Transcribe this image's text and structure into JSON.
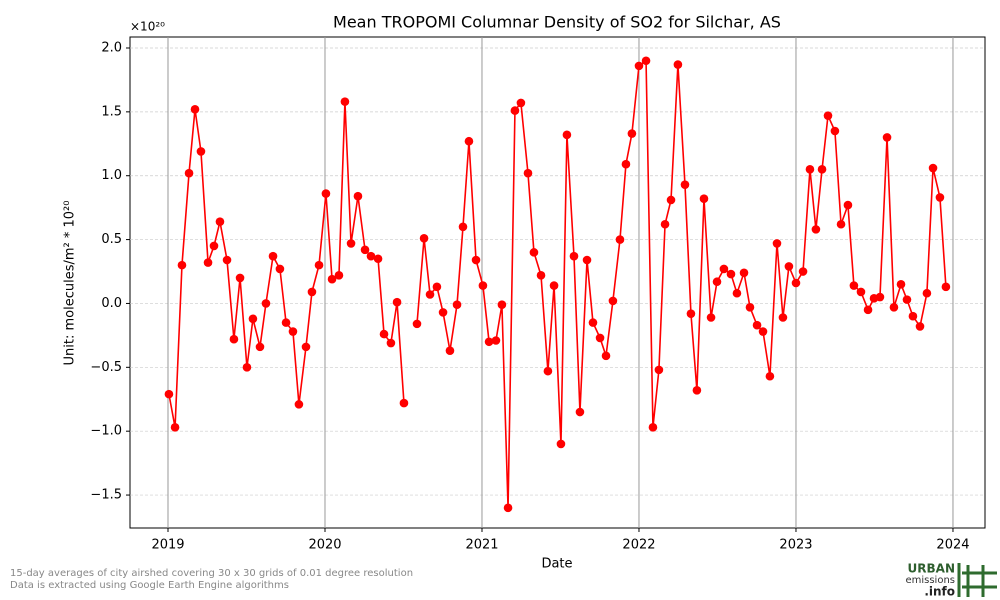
{
  "chart_data": {
    "type": "line",
    "title": "Mean TROPOMI Columnar Density of SO2 for Silchar, AS",
    "xlabel": "Date",
    "ylabel": "Unit: molecules/m² * 10²⁰",
    "y_multiplier": "×10²⁰",
    "xlim": [
      2018.758,
      2024.204
    ],
    "ylim": [
      -1.758,
      2.086
    ],
    "xticks": [
      2019,
      2020,
      2021,
      2022,
      2023,
      2024
    ],
    "yticks": [
      {
        "value": -1.5,
        "label": "−1.5"
      },
      {
        "value": -1.0,
        "label": "−1.0"
      },
      {
        "value": -0.5,
        "label": "−0.5"
      },
      {
        "value": 0.0,
        "label": "0.0"
      },
      {
        "value": 0.5,
        "label": "0.5"
      },
      {
        "value": 1.0,
        "label": "1.0"
      },
      {
        "value": 1.5,
        "label": "1.5"
      },
      {
        "value": 2.0,
        "label": "2.0"
      }
    ],
    "grid": true,
    "series": [
      {
        "name": "SO2",
        "color": "#ff0000",
        "x": [
          2019.006,
          2019.045,
          2019.089,
          2019.134,
          2019.172,
          2019.21,
          2019.255,
          2019.293,
          2019.331,
          2019.376,
          2019.42,
          2019.459,
          2019.503,
          2019.541,
          2019.586,
          2019.624,
          2019.669,
          2019.713,
          2019.752,
          2019.796,
          2019.834,
          2019.879,
          2019.917,
          2019.962,
          2020.006,
          2020.045,
          2020.089,
          2020.127,
          2020.166,
          2020.21,
          2020.255,
          2020.293,
          2020.338,
          2020.376,
          2020.42,
          2020.459,
          2020.503,
          2020.541,
          2020.586,
          2020.631,
          2020.669,
          2020.713,
          2020.752,
          2020.796,
          2020.841,
          2020.879,
          2020.917,
          2020.962,
          2021.006,
          2021.045,
          2021.089,
          2021.127,
          2021.166,
          2021.21,
          2021.248,
          2021.293,
          2021.331,
          2021.376,
          2021.42,
          2021.459,
          2021.503,
          2021.541,
          2021.586,
          2021.624,
          2021.669,
          2021.707,
          2021.752,
          2021.79,
          2021.834,
          2021.879,
          2021.917,
          2021.955,
          2022.0,
          2022.045,
          2022.089,
          2022.127,
          2022.166,
          2022.204,
          2022.248,
          2022.293,
          2022.331,
          2022.369,
          2022.414,
          2022.459,
          2022.497,
          2022.541,
          2022.586,
          2022.624,
          2022.669,
          2022.707,
          2022.752,
          2022.79,
          2022.834,
          2022.879,
          2022.917,
          2022.955,
          2023.0,
          2023.045,
          2023.089,
          2023.127,
          2023.166,
          2023.204,
          2023.248,
          2023.287,
          2023.331,
          2023.369,
          2023.414,
          2023.459,
          2023.497,
          2023.535,
          2023.58,
          2023.624,
          2023.669,
          2023.707,
          2023.745,
          2023.79,
          2023.834,
          2023.873,
          2023.917,
          2023.955
        ],
        "values": [
          -0.71,
          -0.97,
          0.3,
          1.02,
          1.52,
          1.19,
          0.32,
          0.45,
          0.64,
          0.34,
          -0.28,
          0.2,
          -0.5,
          -0.12,
          -0.34,
          0.0,
          0.37,
          0.27,
          -0.15,
          -0.22,
          -0.79,
          -0.34,
          0.09,
          0.3,
          0.86,
          0.19,
          0.22,
          1.58,
          0.47,
          0.84,
          0.42,
          0.37,
          0.35,
          -0.24,
          -0.31,
          0.01,
          -0.78,
          null,
          -0.16,
          0.51,
          0.07,
          0.13,
          -0.07,
          -0.37,
          -0.01,
          0.6,
          1.27,
          0.34,
          0.14,
          -0.3,
          -0.29,
          -0.01,
          -1.6,
          1.51,
          1.57,
          1.02,
          0.4,
          0.22,
          -0.53,
          0.14,
          -1.1,
          1.32,
          0.37,
          -0.85,
          0.34,
          -0.15,
          -0.27,
          -0.41,
          0.02,
          0.5,
          1.09,
          1.33,
          1.86,
          1.9,
          -0.97,
          -0.52,
          0.62,
          0.81,
          1.87,
          0.93,
          -0.08,
          -0.68,
          0.82,
          -0.11,
          0.17,
          0.27,
          0.23,
          0.08,
          0.24,
          -0.03,
          -0.17,
          -0.22,
          -0.57,
          0.47,
          -0.11,
          0.29,
          0.16,
          0.25,
          1.05,
          0.58,
          1.05,
          1.47,
          1.35,
          0.62,
          0.77,
          0.14,
          0.09,
          -0.05,
          0.04,
          0.05,
          1.3,
          -0.03,
          0.15,
          0.03,
          -0.1,
          -0.18,
          0.08,
          1.06,
          0.83,
          0.13
        ]
      }
    ]
  },
  "footnote": [
    "15-day averages of city airshed covering 30 x 30 grids of 0.01 degree resolution",
    "Data is extracted using Google Earth Engine algorithms"
  ],
  "logo": {
    "line1": "URBAN",
    "line2": "emissions",
    "line3": ".info"
  }
}
